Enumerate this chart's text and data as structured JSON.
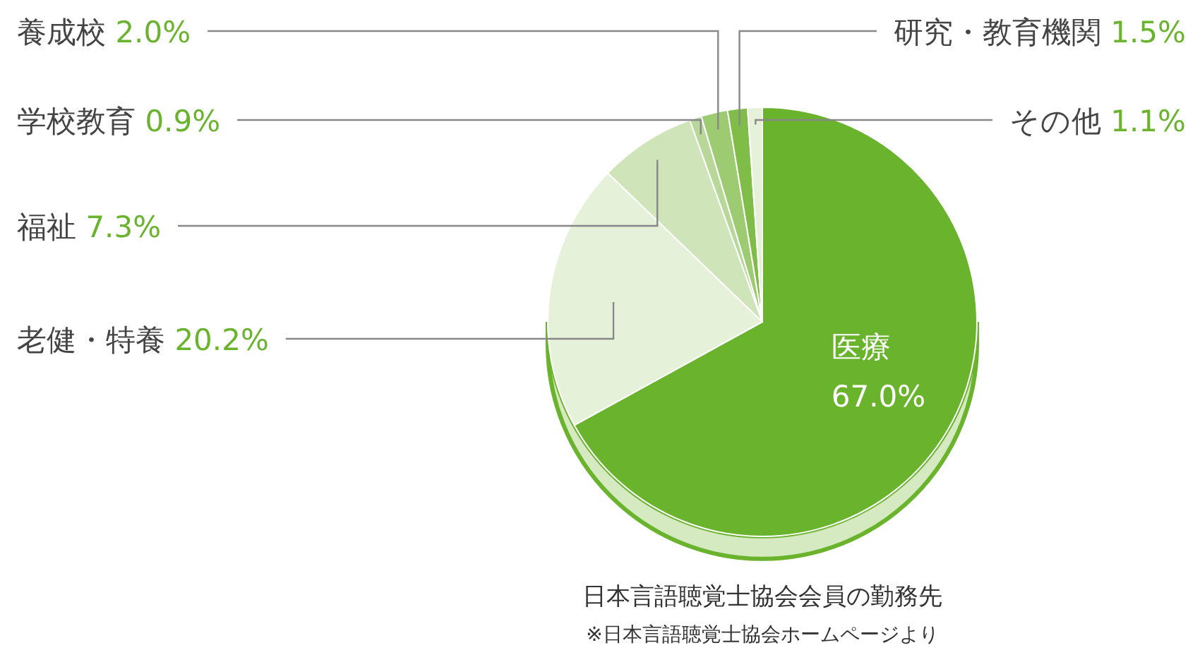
{
  "chart_data": {
    "type": "pie",
    "title": "日本言語聴覚士協会会員の勤務先",
    "annotations": [
      "※日本言語聴覚士協会ホームページより"
    ],
    "categories": [
      "医療",
      "老健・特養",
      "福祉",
      "学校教育",
      "養成校",
      "研究・教育機関",
      "その他"
    ],
    "values": [
      67.0,
      20.2,
      7.3,
      0.9,
      2.0,
      1.5,
      1.1
    ],
    "colors": [
      "#6ab42d",
      "#e6f1da",
      "#cfe4b8",
      "#b7d898",
      "#9dcb72",
      "#7fbd48",
      "#e6f1da"
    ],
    "value_labels": [
      "67.0%",
      "20.2%",
      "7.3%",
      "0.9%",
      "2.0%",
      "1.5%",
      "1.1%"
    ]
  }
}
